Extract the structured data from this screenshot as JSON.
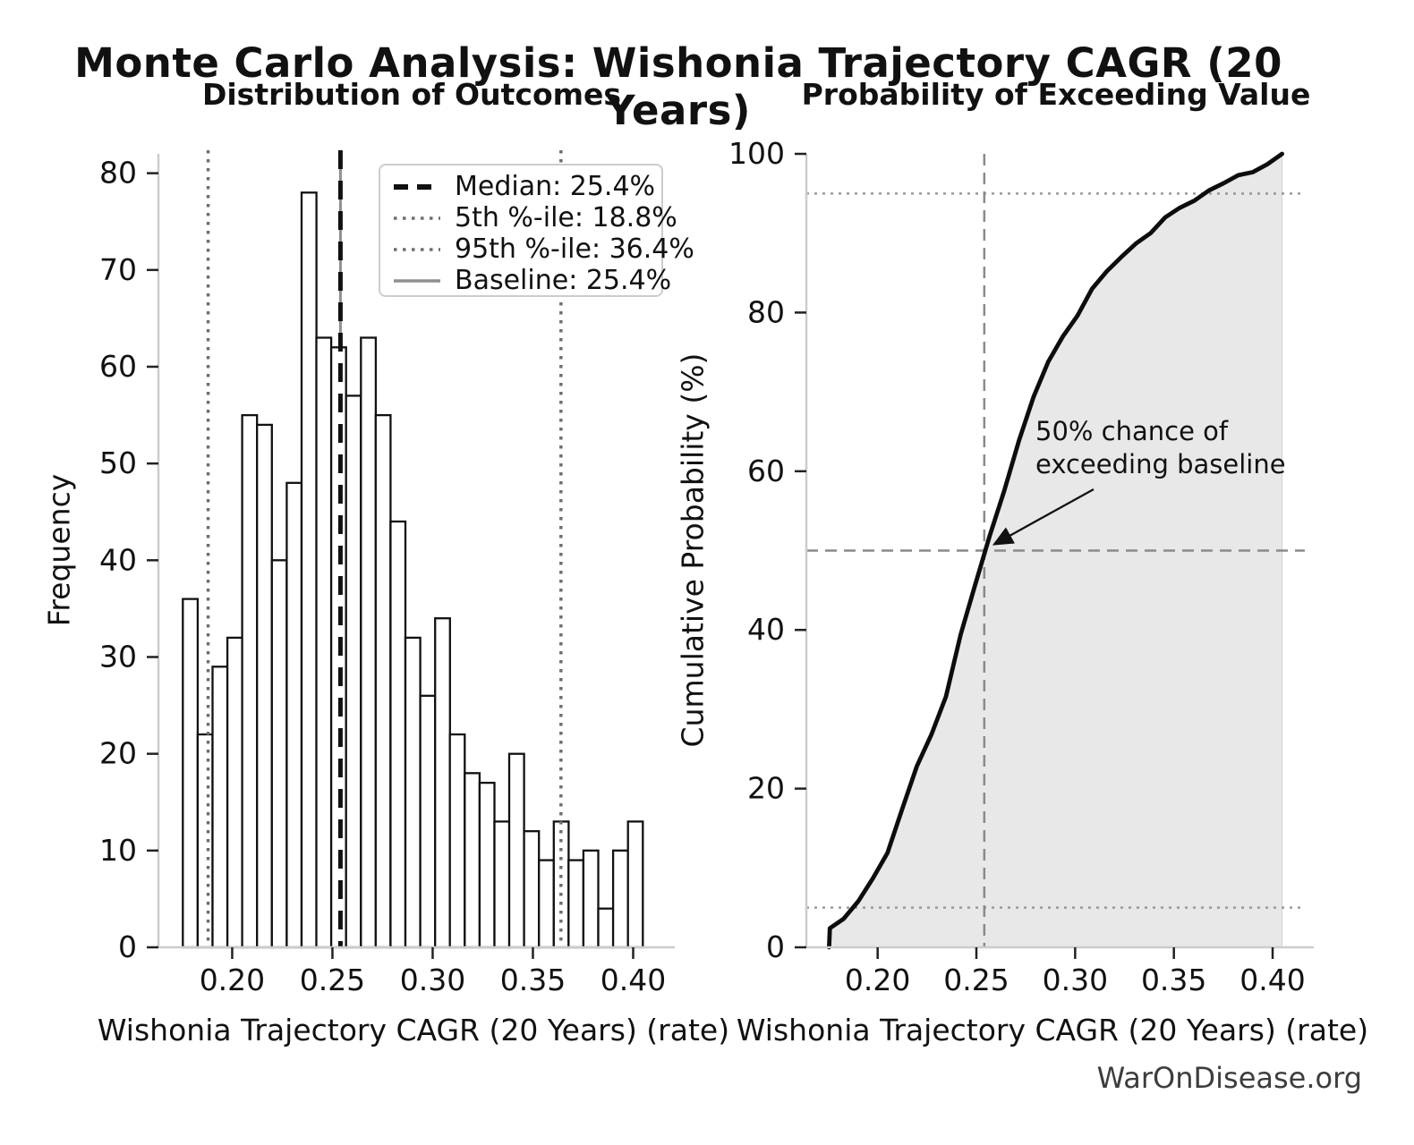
{
  "figure": {
    "title": "Monte Carlo Analysis: Wishonia Trajectory CAGR (20 Years)",
    "watermark": "WarOnDisease.org"
  },
  "colors": {
    "bar_fill": "#ffffff",
    "bar_edge": "#111111",
    "curve": "#0d0d0d",
    "curve_fill": "#e8e8e8",
    "median_line": "#111111",
    "percentile_line": "#6e6e6e",
    "baseline_line": "#8f8f8f",
    "guide_dashed": "#8a8a8a",
    "guide_dotted": "#999999",
    "spine": "#cccccc",
    "tick": "#222222",
    "watermark": "#3d3d3d"
  },
  "chart_data": [
    {
      "id": "histogram",
      "type": "bar",
      "title": "Distribution of Outcomes",
      "xlabel": "Wishonia Trajectory CAGR (20 Years) (rate)",
      "ylabel": "Frequency",
      "bin_start": 0.1754,
      "bin_width": 0.0074,
      "frequencies": [
        36,
        22,
        29,
        32,
        55,
        54,
        40,
        48,
        78,
        63,
        62,
        57,
        63,
        55,
        44,
        32,
        26,
        34,
        22,
        18,
        17,
        13,
        20,
        12,
        9,
        13,
        9,
        10,
        4,
        10,
        13
      ],
      "reference_lines": [
        {
          "name": "median",
          "label": "Median: 25.4%",
          "value": 0.254,
          "style": "dashed"
        },
        {
          "name": "p5",
          "label": "5th %-ile: 18.8%",
          "value": 0.188,
          "style": "dotted"
        },
        {
          "name": "p95",
          "label": "95th %-ile: 36.4%",
          "value": 0.364,
          "style": "dotted"
        },
        {
          "name": "baseline",
          "label": "Baseline: 25.4%",
          "value": 0.254,
          "style": "solid"
        }
      ],
      "axis": {
        "xlim": [
          0.1632,
          0.4163
        ],
        "ylim": [
          0,
          82
        ],
        "x_ticks": [
          0.2,
          0.25,
          0.3,
          0.35,
          0.4
        ],
        "x_tick_labels": [
          "0.20",
          "0.25",
          "0.30",
          "0.35",
          "0.40"
        ],
        "y_ticks": [
          0,
          10,
          20,
          30,
          40,
          50,
          60,
          70,
          80
        ],
        "grid": false,
        "legend_position": "upper right"
      }
    },
    {
      "id": "cdf",
      "type": "line",
      "title": "Probability of Exceeding Value",
      "xlabel": "Wishonia Trajectory CAGR (20 Years) (rate)",
      "ylabel": "Cumulative Probability (%)",
      "x": [
        0.1754,
        0.1758,
        0.1828,
        0.1902,
        0.1976,
        0.205,
        0.2124,
        0.2198,
        0.2272,
        0.2346,
        0.242,
        0.2494,
        0.2568,
        0.2642,
        0.2716,
        0.279,
        0.2864,
        0.2938,
        0.3012,
        0.3086,
        0.316,
        0.3234,
        0.3308,
        0.3382,
        0.3456,
        0.353,
        0.3604,
        0.3678,
        0.3752,
        0.3826,
        0.39,
        0.3974,
        0.4048
      ],
      "y": [
        0,
        2.4,
        3.6,
        5.8,
        8.7,
        11.9,
        17.4,
        22.8,
        26.8,
        31.6,
        39.4,
        45.7,
        51.9,
        57.6,
        63.9,
        69.4,
        73.8,
        77.0,
        79.6,
        83.0,
        85.2,
        87.0,
        88.7,
        90.0,
        92.0,
        93.2,
        94.1,
        95.4,
        96.3,
        97.3,
        97.7,
        98.7,
        100
      ],
      "fill_under": true,
      "guide_lines": [
        {
          "name": "p95-guide",
          "orient": "h",
          "value": 95,
          "style": "dotted"
        },
        {
          "name": "p5-guide",
          "orient": "h",
          "value": 5,
          "style": "dotted"
        },
        {
          "name": "median-guide",
          "orient": "h",
          "value": 50,
          "style": "dashed"
        },
        {
          "name": "baseline-guide",
          "orient": "v",
          "value": 0.254,
          "style": "dashed"
        }
      ],
      "annotation": {
        "lines": [
          "50% chance of",
          "exceeding baseline"
        ],
        "point": [
          0.2545,
          50
        ]
      },
      "axis": {
        "xlim": [
          0.1639,
          0.4163
        ],
        "ylim": [
          0,
          100
        ],
        "x_ticks": [
          0.2,
          0.25,
          0.3,
          0.35,
          0.4
        ],
        "x_tick_labels": [
          "0.20",
          "0.25",
          "0.30",
          "0.35",
          "0.40"
        ],
        "y_ticks": [
          0,
          20,
          40,
          60,
          80,
          100
        ],
        "grid": false
      }
    }
  ]
}
